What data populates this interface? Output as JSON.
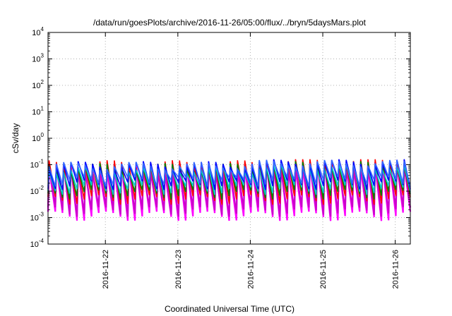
{
  "chart_data": {
    "type": "line",
    "title": "/data/run/goesPlots/archive/2016-11-26/05:00/flux/../bryn/5daysMars.plot",
    "xlabel": "Coordinated Universal Time (UTC)",
    "ylabel": "cSv/day",
    "y_scale": "log",
    "ylim": [
      0.0001,
      10000
    ],
    "y_ticks": [
      {
        "base": "10",
        "exp": "-4",
        "value": 0.0001
      },
      {
        "base": "10",
        "exp": "-3",
        "value": 0.001
      },
      {
        "base": "10",
        "exp": "-2",
        "value": 0.01
      },
      {
        "base": "10",
        "exp": "-1",
        "value": 0.1
      },
      {
        "base": "10",
        "exp": "0",
        "value": 1
      },
      {
        "base": "10",
        "exp": "1",
        "value": 10
      },
      {
        "base": "10",
        "exp": "2",
        "value": 100
      },
      {
        "base": "10",
        "exp": "3",
        "value": 1000
      },
      {
        "base": "10",
        "exp": "4",
        "value": 10000
      }
    ],
    "xlim": [
      "2016-11-21T05:00",
      "2016-11-26T05:00"
    ],
    "x_ticks": [
      {
        "label": "2016-11-22",
        "value": "2016-11-22T00:00"
      },
      {
        "label": "2016-11-23",
        "value": "2016-11-23T00:00"
      },
      {
        "label": "2016-11-24",
        "value": "2016-11-24T00:00"
      },
      {
        "label": "2016-11-25",
        "value": "2016-11-25T00:00"
      },
      {
        "label": "2016-11-26",
        "value": "2016-11-26T00:00"
      }
    ],
    "grid": true,
    "legend": "none",
    "sawtooth": {
      "cycles": 50,
      "start": "2016-11-21T05:00",
      "end": "2016-11-26T05:00"
    },
    "series": [
      {
        "color": "#ff00ff",
        "peak": 0.075,
        "trough": 0.0012
      },
      {
        "color": "#cc00cc",
        "peak": 0.08,
        "trough": 0.0018
      },
      {
        "color": "#ff0000",
        "peak": 0.11,
        "trough": 0.005
      },
      {
        "color": "#008000",
        "peak": 0.085,
        "trough": 0.008
      },
      {
        "color": "#00cccc",
        "peak": 0.07,
        "trough": 0.012
      },
      {
        "color": "#0000ff",
        "peak": 0.1,
        "trough": 0.018
      },
      {
        "color": "#3366ff",
        "peak": 0.095,
        "trough": 0.025
      }
    ]
  }
}
